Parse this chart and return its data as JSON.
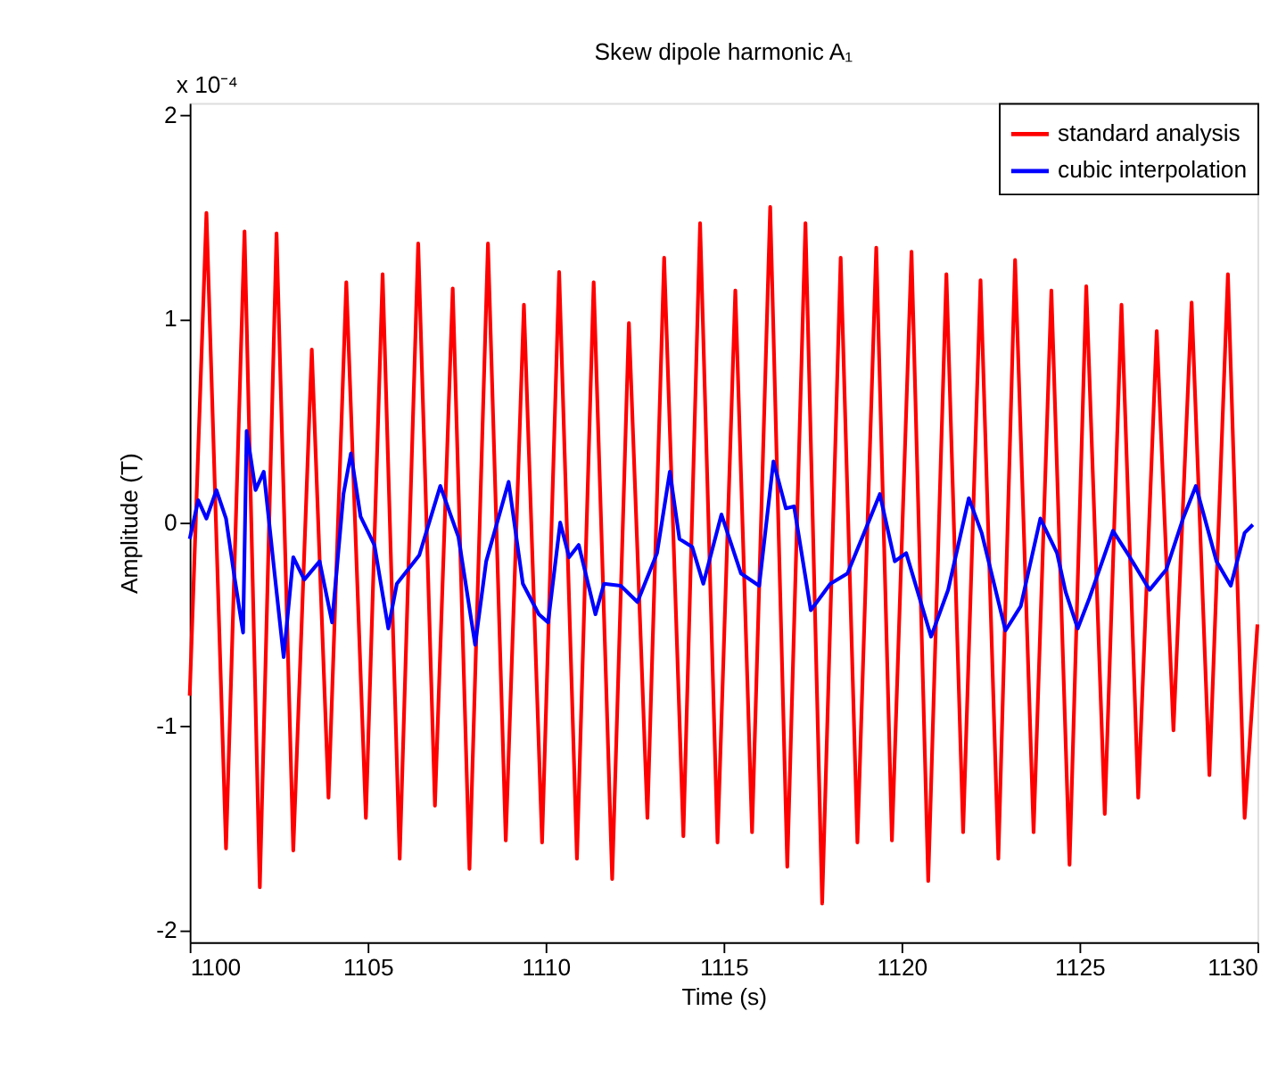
{
  "chart_data": {
    "type": "line",
    "title": "Skew dipole harmonic A₁",
    "xlabel": "Time (s)",
    "ylabel": "Amplitude (T)",
    "annotations": [
      "x 10⁻⁴"
    ],
    "xlim": [
      1100,
      1130
    ],
    "xticks": [
      1100,
      1105,
      1110,
      1115,
      1120,
      1125,
      1130
    ],
    "ylim": [
      -2.06,
      2.06
    ],
    "yticks": [
      -2,
      -1,
      0,
      1,
      2
    ],
    "grid": false,
    "legend": "top right",
    "marker": "none",
    "line_style": "solid",
    "series": [
      {
        "name": "standard analysis",
        "color": "#ff0000",
        "x": [
          1100,
          1100.47,
          1101.02,
          1101.54,
          1101.97,
          1102.44,
          1102.91,
          1103.43,
          1103.9,
          1104.4,
          1104.95,
          1105.42,
          1105.9,
          1106.42,
          1106.89,
          1107.39,
          1107.86,
          1108.38,
          1108.88,
          1109.39,
          1109.9,
          1110.38,
          1110.88,
          1111.35,
          1111.87,
          1112.34,
          1112.86,
          1113.33,
          1113.87,
          1114.34,
          1114.83,
          1115.33,
          1115.8,
          1116.31,
          1116.79,
          1117.3,
          1117.77,
          1118.29,
          1118.76,
          1119.29,
          1119.73,
          1120.28,
          1120.75,
          1121.26,
          1121.73,
          1122.22,
          1122.72,
          1123.19,
          1123.71,
          1124.21,
          1124.72,
          1125.19,
          1125.71,
          1126.18,
          1126.65,
          1127.17,
          1127.64,
          1128.15,
          1128.65,
          1129.17,
          1129.64,
          1130
        ],
        "values": [
          -0.85,
          1.52,
          -1.6,
          1.43,
          -1.79,
          1.42,
          -1.61,
          0.85,
          -1.35,
          1.18,
          -1.45,
          1.22,
          -1.65,
          1.37,
          -1.39,
          1.15,
          -1.7,
          1.37,
          -1.56,
          1.07,
          -1.57,
          1.23,
          -1.65,
          1.18,
          -1.75,
          0.98,
          -1.45,
          1.3,
          -1.54,
          1.47,
          -1.57,
          1.14,
          -1.52,
          1.55,
          -1.69,
          1.47,
          -1.87,
          1.3,
          -1.57,
          1.35,
          -1.56,
          1.33,
          -1.76,
          1.22,
          -1.52,
          1.19,
          -1.65,
          1.29,
          -1.52,
          1.14,
          -1.68,
          1.16,
          -1.43,
          1.07,
          -1.35,
          0.94,
          -1.02,
          1.08,
          -1.24,
          1.22,
          -1.45,
          -0.5
        ]
      },
      {
        "name": "cubic interpolation",
        "color": "#0000ff",
        "x": [
          1100,
          1100.24,
          1100.47,
          1100.75,
          1101.02,
          1101.26,
          1101.5,
          1101.6,
          1101.85,
          1102.08,
          1102.36,
          1102.64,
          1102.91,
          1103.22,
          1103.65,
          1104.0,
          1104.32,
          1104.53,
          1104.8,
          1105.19,
          1105.58,
          1105.82,
          1106.45,
          1107.04,
          1107.55,
          1108.02,
          1108.33,
          1108.96,
          1109.36,
          1109.81,
          1110.07,
          1110.41,
          1110.66,
          1110.93,
          1111.4,
          1111.64,
          1112.11,
          1112.58,
          1113.13,
          1113.49,
          1113.76,
          1114.12,
          1114.43,
          1114.94,
          1115.49,
          1116.0,
          1116.4,
          1116.75,
          1116.98,
          1117.45,
          1118.0,
          1118.48,
          1118.95,
          1119.39,
          1119.81,
          1120.13,
          1120.83,
          1121.31,
          1121.89,
          1122.25,
          1122.92,
          1123.35,
          1123.9,
          1124.37,
          1124.61,
          1124.95,
          1125.28,
          1125.94,
          1126.38,
          1126.97,
          1127.44,
          1127.91,
          1128.27,
          1128.85,
          1129.25,
          1129.64,
          1129.87
        ],
        "values": [
          -0.08,
          0.11,
          0.02,
          0.16,
          0.02,
          -0.27,
          -0.54,
          0.45,
          0.16,
          0.25,
          -0.21,
          -0.66,
          -0.17,
          -0.28,
          -0.19,
          -0.49,
          0.14,
          0.34,
          0.03,
          -0.11,
          -0.52,
          -0.3,
          -0.16,
          0.18,
          -0.07,
          -0.6,
          -0.19,
          0.2,
          -0.3,
          -0.45,
          -0.49,
          0.0,
          -0.17,
          -0.11,
          -0.45,
          -0.3,
          -0.31,
          -0.39,
          -0.15,
          0.25,
          -0.08,
          -0.12,
          -0.3,
          0.04,
          -0.25,
          -0.31,
          0.3,
          0.07,
          0.08,
          -0.43,
          -0.3,
          -0.25,
          -0.05,
          0.14,
          -0.19,
          -0.15,
          -0.56,
          -0.33,
          0.12,
          -0.05,
          -0.53,
          -0.41,
          0.02,
          -0.15,
          -0.34,
          -0.52,
          -0.37,
          -0.04,
          -0.16,
          -0.33,
          -0.23,
          0.02,
          0.18,
          -0.19,
          -0.31,
          -0.05,
          -0.01
        ]
      }
    ]
  }
}
